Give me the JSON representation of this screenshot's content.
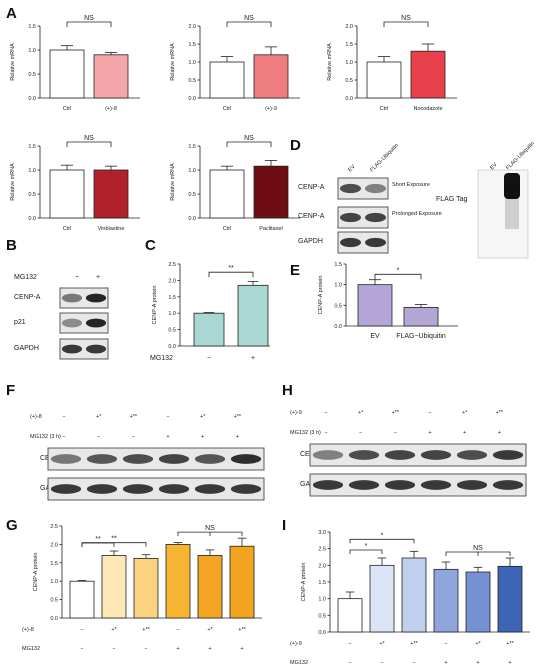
{
  "panels": [
    "A",
    "B",
    "C",
    "D",
    "E",
    "F",
    "G",
    "H",
    "I"
  ],
  "colors": {
    "white": "#ffffff",
    "pink": "#f4a6a8",
    "salmon": "#ef7c7f",
    "red": "#e8404a",
    "darkred": "#b1212c",
    "maroon": "#6e0d12",
    "teal": "#a9d7d4",
    "lavender": "#b5a6d8",
    "g1": "#ffffff",
    "g2": "#fde7b4",
    "g3": "#fbd27f",
    "g4": "#f7b332",
    "g5": "#f3a424",
    "g6": "#f2a31f",
    "i2": "#dbe4f6",
    "i3": "#bfd0ee",
    "i4": "#8fa6dc",
    "i5": "#7691d2",
    "i6": "#3e65b6"
  },
  "panelA": {
    "ylabel": "Relative mRNA",
    "sig": "NS",
    "charts": [
      {
        "ctrl_label": "Ctrl",
        "treat_label": "(+)-8",
        "ctrl": 1.0,
        "treat": 0.9,
        "ctrl_err": 0.09,
        "treat_err": 0.05,
        "ticks": [
          "0.0",
          "0.5",
          "1.0",
          "1.5"
        ],
        "ymax": 1.5,
        "color": "pink"
      },
      {
        "ctrl_label": "Ctrl",
        "treat_label": "(+)-9",
        "ctrl": 1.0,
        "treat": 1.2,
        "ctrl_err": 0.15,
        "treat_err": 0.22,
        "ticks": [
          "0.0",
          "0.5",
          "1.0",
          "1.5",
          "2.0"
        ],
        "ymax": 2.0,
        "color": "salmon"
      },
      {
        "ctrl_label": "Ctrl",
        "treat_label": "Nocodazole",
        "ctrl": 1.0,
        "treat": 1.3,
        "ctrl_err": 0.15,
        "treat_err": 0.2,
        "ticks": [
          "0.0",
          "0.5",
          "1.0",
          "1.5",
          "2.0"
        ],
        "ymax": 2.0,
        "color": "red"
      },
      {
        "ctrl_label": "Ctrl",
        "treat_label": "Vinblastine",
        "ctrl": 1.0,
        "treat": 1.0,
        "ctrl_err": 0.1,
        "treat_err": 0.08,
        "ticks": [
          "0.0",
          "0.5",
          "1.0",
          "1.5"
        ],
        "ymax": 1.5,
        "color": "darkred"
      },
      {
        "ctrl_label": "Ctrl",
        "treat_label": "Paclitaxel",
        "ctrl": 1.0,
        "treat": 1.08,
        "ctrl_err": 0.08,
        "treat_err": 0.12,
        "ticks": [
          "0.0",
          "0.5",
          "1.0",
          "1.5"
        ],
        "ymax": 1.5,
        "color": "maroon"
      }
    ]
  },
  "panelB": {
    "treatment": "MG132",
    "minus": "−",
    "plus": "+",
    "rows": [
      "CENP-A",
      "p21",
      "GAPDH"
    ]
  },
  "panelC": {
    "ylabel": "CENP-A protein",
    "xlabel": "MG132",
    "cats": [
      "−",
      "+"
    ],
    "values": [
      1.0,
      1.85
    ],
    "errs": [
      0.02,
      0.12
    ],
    "ticks": [
      "0.0",
      "0.5",
      "1.0",
      "1.5",
      "2.0",
      "2.5"
    ],
    "ymax": 2.5,
    "sig": "**"
  },
  "panelD": {
    "lanes": [
      "EV",
      "FLAG-Ubiquitin"
    ],
    "rows": [
      "CENP-A",
      "CENP-A",
      "GAPDH"
    ],
    "exposures": [
      "Short Exposure",
      "Prolonged Exposure"
    ],
    "flag_label": "FLAG Tag"
  },
  "panelE": {
    "ylabel": "CENP-A protein",
    "cats": [
      "EV",
      "FLAG−Ubiquitin"
    ],
    "values": [
      1.0,
      0.45
    ],
    "errs": [
      0.12,
      0.07
    ],
    "ticks": [
      "0.0",
      "0.5",
      "1.0",
      "1.5"
    ],
    "ymax": 1.5,
    "sig": "*"
  },
  "panelF": {
    "treatment": "(+)-8",
    "mg_label": "MG132 (3 h)",
    "cond1": [
      "−",
      "+*",
      "+**",
      "−",
      "+*",
      "+**"
    ],
    "cond2": [
      "−",
      "−",
      "−",
      "+",
      "+",
      "+"
    ],
    "rows": [
      "CENP-A",
      "GAPDH"
    ]
  },
  "panelH": {
    "treatment": "(+)-9",
    "mg_label": "MG132 (3 h)",
    "cond1": [
      "−",
      "+*",
      "+**",
      "−",
      "+*",
      "+**"
    ],
    "cond2": [
      "−",
      "−",
      "−",
      "+",
      "+",
      "+"
    ],
    "rows": [
      "CENP-A",
      "GAPDH"
    ]
  },
  "panelG": {
    "ylabel": "CENP-A protein",
    "treatment": "(+)-8",
    "mg": "MG132",
    "cond1": [
      "−",
      "+*",
      "+**",
      "−",
      "+*",
      "+**"
    ],
    "cond2": [
      "−",
      "−",
      "−",
      "+",
      "+",
      "+"
    ],
    "values": [
      1.0,
      1.7,
      1.62,
      2.0,
      1.7,
      1.95
    ],
    "errs": [
      0.02,
      0.12,
      0.1,
      0.05,
      0.15,
      0.22
    ],
    "ticks": [
      "0.0",
      "0.5",
      "1.0",
      "1.5",
      "2.0",
      "2.5"
    ],
    "ymax": 2.5,
    "sig1": "**",
    "sig2": "**",
    "sig3": "NS"
  },
  "panelI": {
    "ylabel": "CENP-A protein",
    "treatment": "(+)-9",
    "mg": "MG132",
    "cond1": [
      "−",
      "+*",
      "+**",
      "−",
      "+*",
      "+**"
    ],
    "cond2": [
      "−",
      "−",
      "−",
      "+",
      "+",
      "+"
    ],
    "values": [
      1.0,
      2.0,
      2.22,
      1.88,
      1.8,
      1.97
    ],
    "errs": [
      0.2,
      0.22,
      0.2,
      0.22,
      0.14,
      0.25
    ],
    "ticks": [
      "0.0",
      "0.5",
      "1.0",
      "1.5",
      "2.0",
      "2.5",
      "3.0"
    ],
    "ymax": 3.0,
    "sig1": "*",
    "sig2": "*",
    "sig3": "NS"
  },
  "chart_data": [
    {
      "type": "bar",
      "categories": [
        "Ctrl",
        "(+)-8"
      ],
      "values": [
        1.0,
        0.9
      ],
      "ylabel": "Relative mRNA",
      "ylim": [
        0,
        1.5
      ]
    },
    {
      "type": "bar",
      "categories": [
        "Ctrl",
        "(+)-9"
      ],
      "values": [
        1.0,
        1.2
      ],
      "ylabel": "Relative mRNA",
      "ylim": [
        0,
        2.0
      ]
    },
    {
      "type": "bar",
      "categories": [
        "Ctrl",
        "Nocodazole"
      ],
      "values": [
        1.0,
        1.3
      ],
      "ylabel": "Relative mRNA",
      "ylim": [
        0,
        2.0
      ]
    },
    {
      "type": "bar",
      "categories": [
        "Ctrl",
        "Vinblastine"
      ],
      "values": [
        1.0,
        1.0
      ],
      "ylabel": "Relative mRNA",
      "ylim": [
        0,
        1.5
      ]
    },
    {
      "type": "bar",
      "categories": [
        "Ctrl",
        "Paclitaxel"
      ],
      "values": [
        1.0,
        1.08
      ],
      "ylabel": "Relative mRNA",
      "ylim": [
        0,
        1.5
      ]
    },
    {
      "type": "bar",
      "categories": [
        "−",
        "+"
      ],
      "values": [
        1.0,
        1.85
      ],
      "xlabel": "MG132",
      "ylabel": "CENP-A protein",
      "ylim": [
        0,
        2.5
      ]
    },
    {
      "type": "bar",
      "categories": [
        "EV",
        "FLAG−Ubiquitin"
      ],
      "values": [
        1.0,
        0.45
      ],
      "ylabel": "CENP-A protein",
      "ylim": [
        0,
        1.5
      ]
    },
    {
      "type": "bar",
      "categories": [
        "−/−",
        "+*/−",
        "+**/−",
        "−/+",
        "+*/+",
        "+**/+"
      ],
      "values": [
        1.0,
        1.7,
        1.62,
        2.0,
        1.7,
        1.95
      ],
      "ylabel": "CENP-A protein",
      "ylim": [
        0,
        2.5
      ]
    },
    {
      "type": "bar",
      "categories": [
        "−/−",
        "+*/−",
        "+**/−",
        "−/+",
        "+*/+",
        "+**/+"
      ],
      "values": [
        1.0,
        2.0,
        2.22,
        1.88,
        1.8,
        1.97
      ],
      "ylabel": "CENP-A protein",
      "ylim": [
        0,
        3.0
      ]
    }
  ]
}
